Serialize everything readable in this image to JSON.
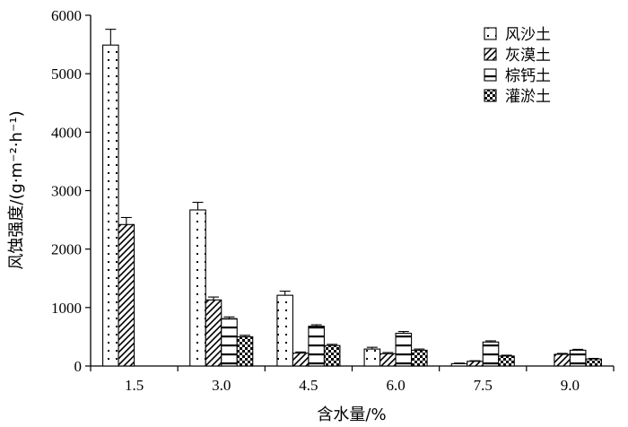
{
  "chart_data": {
    "type": "bar",
    "title": "",
    "xlabel": "含水量/%",
    "ylabel": "风蚀强度/(g·m⁻²·h⁻¹)",
    "ylim": [
      0,
      6000
    ],
    "yticks": [
      0,
      1000,
      2000,
      3000,
      4000,
      5000,
      6000
    ],
    "categories": [
      "1.5",
      "3.0",
      "4.5",
      "6.0",
      "7.5",
      "9.0"
    ],
    "grid": false,
    "legend_position": "top-right",
    "series": [
      {
        "name": "风沙土",
        "pattern": "dots",
        "values": [
          5490,
          2670,
          1210,
          290,
          40,
          0
        ],
        "errors": [
          270,
          130,
          70,
          30,
          10,
          0
        ]
      },
      {
        "name": "灰漠土",
        "pattern": "diagonal",
        "values": [
          2420,
          1130,
          220,
          210,
          80,
          200
        ],
        "errors": [
          120,
          50,
          20,
          20,
          10,
          15
        ]
      },
      {
        "name": "棕钙土",
        "pattern": "horizontal",
        "values": [
          0,
          810,
          680,
          560,
          410,
          270
        ],
        "errors": [
          0,
          30,
          25,
          30,
          20,
          15
        ]
      },
      {
        "name": "灌淤土",
        "pattern": "checker",
        "values": [
          0,
          500,
          350,
          270,
          170,
          120
        ],
        "errors": [
          0,
          25,
          20,
          20,
          15,
          10
        ]
      }
    ]
  }
}
